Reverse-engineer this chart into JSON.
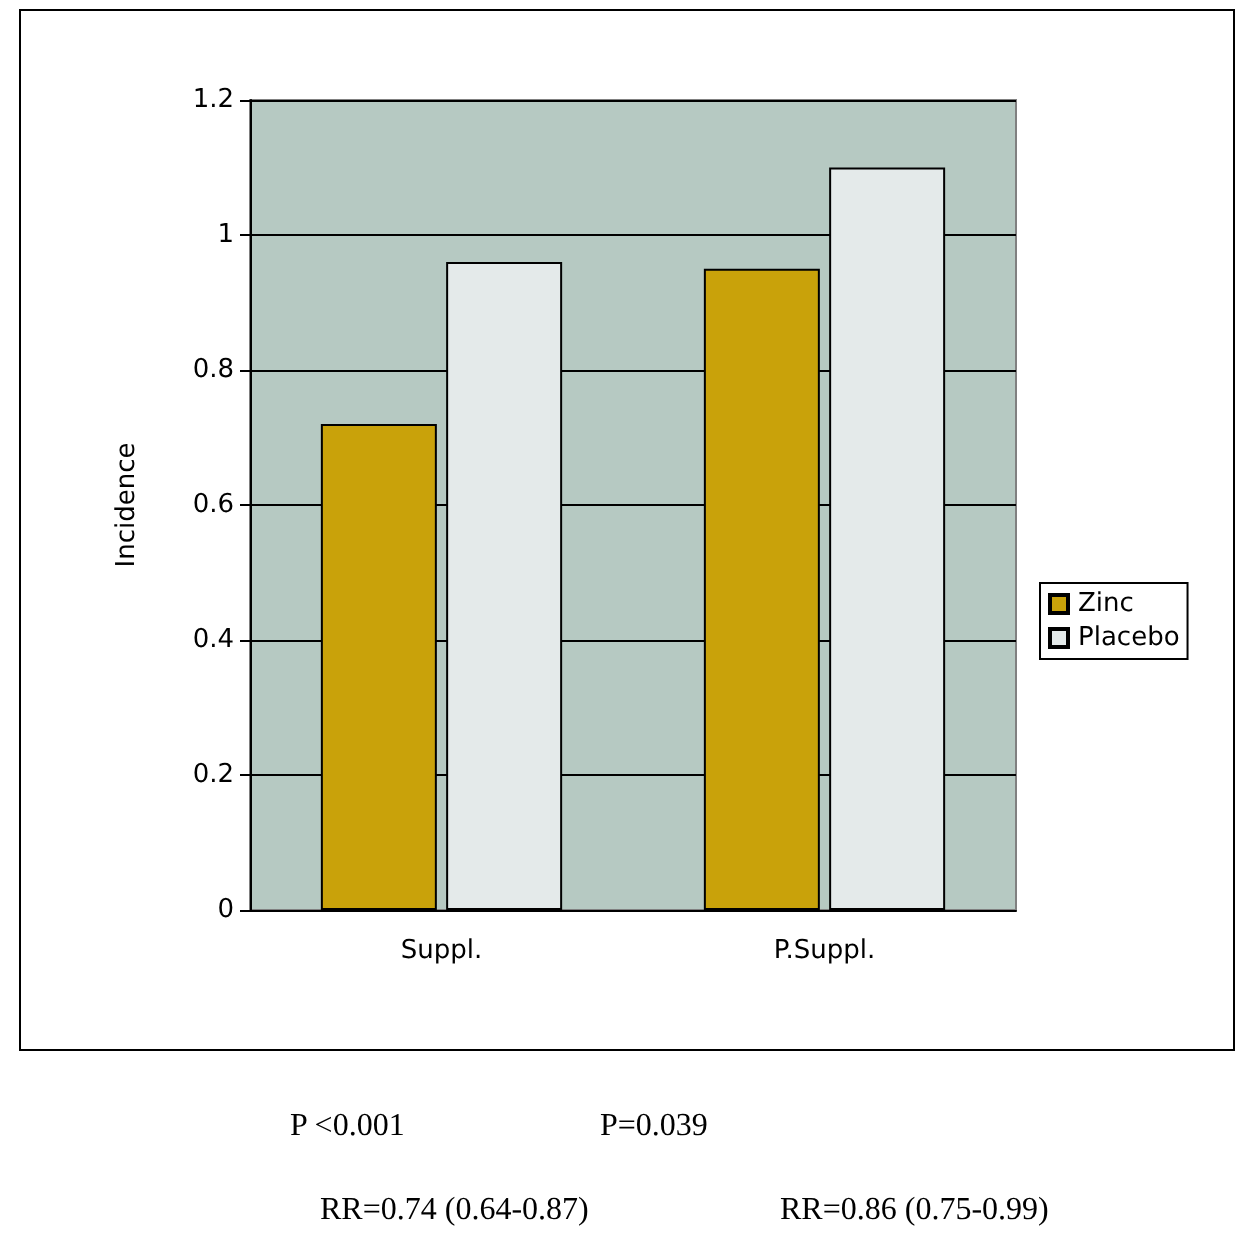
{
  "chart_data": {
    "type": "bar",
    "ylabel": "Incidence",
    "categories": [
      "Suppl.",
      "P.Suppl."
    ],
    "series": [
      {
        "name": "Zinc",
        "color": "#c9a20a",
        "values": [
          0.72,
          0.95
        ]
      },
      {
        "name": "Placebo",
        "color": "#e4eaea",
        "values": [
          0.96,
          1.1
        ]
      }
    ],
    "ylim": [
      0,
      1.2
    ],
    "yticks": [
      0,
      0.2,
      0.4,
      0.6,
      0.8,
      1,
      1.2
    ],
    "grid": "y",
    "legend": "right",
    "annotations": [
      "P <0.001",
      "P=0.039",
      "RR=0.74 (0.64-0.87)",
      "RR=0.86 (0.75-0.99)"
    ]
  }
}
